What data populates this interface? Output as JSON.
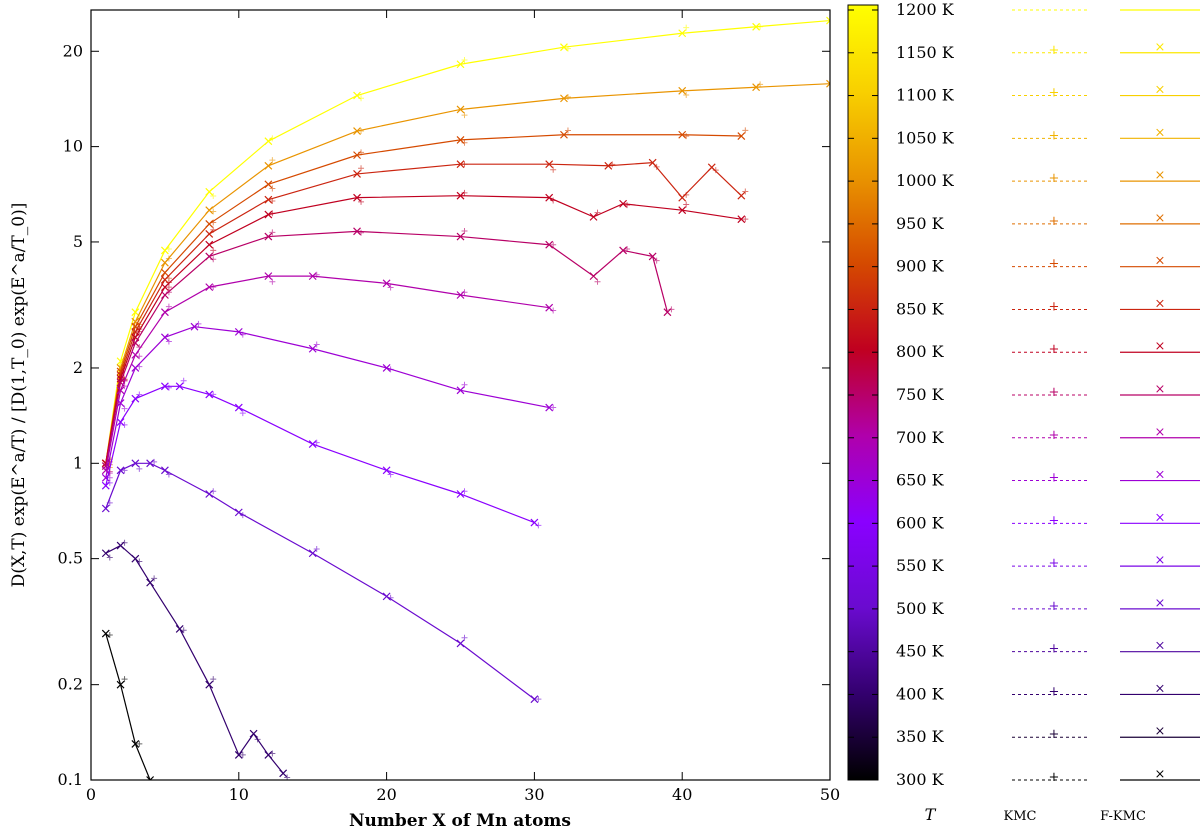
{
  "chart_data": {
    "type": "scatter",
    "title": "",
    "xlabel": "Number X of Mn atoms",
    "ylabel": "D(X,T) exp(E^a/T) / [D(1,T_0) exp(E^a/T_0)]",
    "yscale": "log",
    "xlim": [
      0,
      50
    ],
    "ylim": [
      0.1,
      27
    ],
    "x_ticks": [
      0,
      10,
      20,
      30,
      40,
      50
    ],
    "y_ticks": [
      0.1,
      0.2,
      0.5,
      1,
      2,
      5,
      10,
      20
    ],
    "y_tick_labels": [
      "0.1",
      "0.2",
      "0.5",
      "1",
      "2",
      "5",
      "10",
      "20"
    ],
    "grid": false,
    "colorbar": {
      "label_unit": "K",
      "min": 300,
      "max": 1200,
      "ticks": [
        "1200 K",
        "1150 K",
        "1100 K",
        "1050 K",
        "1000 K",
        "950 K",
        "900 K",
        "850 K",
        "800 K",
        "750 K",
        "700 K",
        "650 K",
        "600 K",
        "550 K",
        "500 K",
        "450 K",
        "400 K",
        "350 K",
        "300 K"
      ],
      "palette": [
        "#000000",
        "#33006e",
        "#6a0bcf",
        "#8a00ff",
        "#b000ab",
        "#c00020",
        "#d54a00",
        "#e99400",
        "#f8d000",
        "#ffff00"
      ]
    },
    "legend": {
      "header_T": "T",
      "header_kmc": "KMC",
      "header_fkmc": "F-KMC",
      "kmc_marker": "+",
      "fkmc_marker": "×",
      "placement": "right"
    },
    "series": [
      {
        "name": "1200 K",
        "T": 1200,
        "x": [
          1,
          2,
          3,
          5,
          8,
          12,
          18,
          25,
          32,
          40,
          45,
          50
        ],
        "values": [
          1.0,
          2.1,
          3.0,
          4.7,
          7.2,
          10.4,
          14.5,
          18.2,
          20.6,
          22.8,
          23.9,
          25.0
        ]
      },
      {
        "name": "1000 K",
        "T": 1000,
        "x": [
          1,
          2,
          3,
          5,
          8,
          12,
          18,
          25,
          32,
          40,
          45,
          50
        ],
        "values": [
          1.0,
          2.0,
          2.8,
          4.3,
          6.3,
          8.7,
          11.2,
          13.1,
          14.2,
          15.0,
          15.4,
          15.8
        ]
      },
      {
        "name": "900 K",
        "T": 900,
        "x": [
          1,
          2,
          3,
          5,
          8,
          12,
          18,
          25,
          32,
          40,
          44
        ],
        "values": [
          1.0,
          1.95,
          2.7,
          4.0,
          5.7,
          7.6,
          9.4,
          10.5,
          10.9,
          10.9,
          10.8
        ]
      },
      {
        "name": "850 K",
        "T": 850,
        "x": [
          1,
          2,
          3,
          5,
          8,
          12,
          18,
          25,
          31,
          35,
          38,
          40,
          42,
          44
        ],
        "values": [
          1.0,
          1.9,
          2.6,
          3.8,
          5.3,
          6.8,
          8.2,
          8.8,
          8.8,
          8.7,
          8.9,
          6.9,
          8.6,
          7.0
        ]
      },
      {
        "name": "800 K",
        "T": 800,
        "x": [
          1,
          2,
          3,
          5,
          8,
          12,
          18,
          25,
          31,
          34,
          36,
          40,
          44
        ],
        "values": [
          1.0,
          1.85,
          2.5,
          3.6,
          4.9,
          6.1,
          6.9,
          7.0,
          6.9,
          6.0,
          6.6,
          6.3,
          5.9
        ]
      },
      {
        "name": "750 K",
        "T": 750,
        "x": [
          1,
          2,
          3,
          5,
          8,
          12,
          18,
          25,
          31,
          34,
          36,
          38,
          39
        ],
        "values": [
          0.98,
          1.8,
          2.4,
          3.4,
          4.5,
          5.2,
          5.4,
          5.2,
          4.9,
          3.9,
          4.7,
          4.5,
          3.0
        ]
      },
      {
        "name": "700 K",
        "T": 700,
        "x": [
          1,
          2,
          3,
          5,
          8,
          12,
          15,
          20,
          25,
          31
        ],
        "values": [
          0.95,
          1.7,
          2.2,
          3.0,
          3.6,
          3.9,
          3.9,
          3.7,
          3.4,
          3.1
        ]
      },
      {
        "name": "650 K",
        "T": 650,
        "x": [
          1,
          2,
          3,
          5,
          7,
          10,
          15,
          20,
          25,
          31
        ],
        "values": [
          0.9,
          1.55,
          2.0,
          2.5,
          2.7,
          2.6,
          2.3,
          2.0,
          1.7,
          1.5
        ]
      },
      {
        "name": "600 K",
        "T": 600,
        "x": [
          1,
          2,
          3,
          5,
          6,
          8,
          10,
          15,
          20,
          25,
          30
        ],
        "values": [
          0.85,
          1.35,
          1.6,
          1.75,
          1.75,
          1.65,
          1.5,
          1.15,
          0.95,
          0.8,
          0.65
        ]
      },
      {
        "name": "500 K",
        "T": 500,
        "x": [
          1,
          2,
          3,
          4,
          5,
          8,
          10,
          15,
          20,
          25,
          30
        ],
        "values": [
          0.72,
          0.95,
          1.0,
          1.0,
          0.95,
          0.8,
          0.7,
          0.52,
          0.38,
          0.27,
          0.18
        ]
      },
      {
        "name": "400 K",
        "T": 400,
        "x": [
          1,
          2,
          3,
          4,
          6,
          8,
          10,
          11,
          12,
          13
        ],
        "values": [
          0.52,
          0.55,
          0.5,
          0.42,
          0.3,
          0.2,
          0.12,
          0.14,
          0.12,
          0.105
        ]
      },
      {
        "name": "300 K",
        "T": 300,
        "x": [
          1,
          2,
          3,
          4
        ],
        "values": [
          0.29,
          0.2,
          0.13,
          0.1
        ]
      }
    ]
  }
}
